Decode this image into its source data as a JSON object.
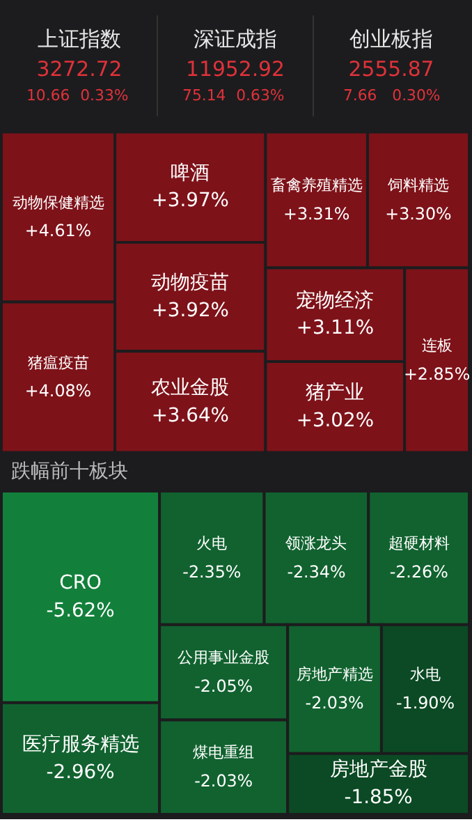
{
  "chart_data": [
    {
      "type": "other",
      "categories": [
        "上证指数",
        "深证成指",
        "创业板指"
      ],
      "series": [
        {
          "color": "#e0323a",
          "values": [
            3272.72,
            11952.92,
            2555.87
          ],
          "value_labels": [
            "3272.72",
            "11952.92",
            "2555.87"
          ]
        },
        {
          "color": "#e0323a",
          "values": [
            10.66,
            75.14,
            7.66
          ],
          "value_labels": [
            "10.66",
            "75.14",
            "7.66"
          ]
        },
        {
          "color": "#e0323a",
          "values": [
            0.33,
            0.63,
            0.3
          ],
          "value_labels": [
            "0.33%",
            "0.63%",
            "0.30%"
          ]
        }
      ]
    },
    {
      "type": "other",
      "categories": [
        "动物保健精选",
        "猪瘟疫苗",
        "啤酒",
        "动物疫苗",
        "农业金股",
        "畜禽养殖精选",
        "饲料精选",
        "宠物经济",
        "猪产业",
        "连板"
      ],
      "values": [
        4.61,
        4.08,
        3.97,
        3.92,
        3.64,
        3.31,
        3.3,
        3.11,
        3.02,
        2.85
      ],
      "value_labels": [
        "+4.61%",
        "+4.08%",
        "+3.97%",
        "+3.92%",
        "+3.64%",
        "+3.31%",
        "+3.30%",
        "+3.11%",
        "+3.02%",
        "+2.85%"
      ],
      "colors": [
        "#7e1219",
        "#7e1219",
        "#7e1219",
        "#7e1219",
        "#7e1219",
        "#7e1219",
        "#7e1219",
        "#7e1219",
        "#7e1219",
        "#7e1219"
      ]
    },
    {
      "type": "other",
      "title": "跌幅前十板块",
      "categories": [
        "CRO",
        "医疗服务精选",
        "火电",
        "领涨龙头",
        "超硬材料",
        "公用事业金股",
        "煤电重组",
        "房地产精选",
        "水电",
        "房地产金股"
      ],
      "values": [
        -5.62,
        -2.96,
        -2.35,
        -2.34,
        -2.26,
        -2.05,
        -2.03,
        -2.03,
        -1.9,
        -1.85
      ],
      "value_labels": [
        "-5.62%",
        "-2.96%",
        "-2.35%",
        "-2.34%",
        "-2.26%",
        "-2.05%",
        "-2.03%",
        "-2.03%",
        "-1.90%",
        "-1.85%"
      ],
      "colors": [
        "#12803b",
        "#11622f",
        "#11622f",
        "#11622f",
        "#11622f",
        "#11622f",
        "#11622f",
        "#11622f",
        "#0b4a24",
        "#0b4a24"
      ]
    }
  ]
}
